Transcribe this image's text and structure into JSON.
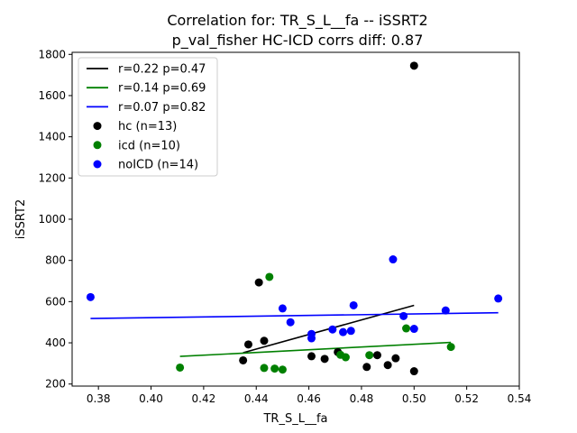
{
  "chart_data": {
    "type": "scatter",
    "title": [
      "Correlation for: TR_S_L__fa -- iSSRT2",
      "p_val_fisher HC-ICD corrs diff: 0.87"
    ],
    "xlabel": "TR_S_L__fa",
    "ylabel": "iSSRT2",
    "xlim": [
      0.37,
      0.54
    ],
    "ylim": [
      190,
      1810
    ],
    "x_ticks": [
      0.38,
      0.4,
      0.42,
      0.44,
      0.46,
      0.48,
      0.5,
      0.52,
      0.54
    ],
    "x_tick_labels": [
      "0.38",
      "0.40",
      "0.42",
      "0.44",
      "0.46",
      "0.48",
      "0.50",
      "0.52",
      "0.54"
    ],
    "y_ticks": [
      200,
      400,
      600,
      800,
      1000,
      1200,
      1400,
      1600,
      1800
    ],
    "y_tick_labels": [
      "200",
      "400",
      "600",
      "800",
      "1000",
      "1200",
      "1400",
      "1600",
      "1800"
    ],
    "grid": false,
    "legend_position": "top-left",
    "legend": [
      {
        "label": "r=0.22 p=0.47",
        "kind": "line",
        "color": "#000000"
      },
      {
        "label": "r=0.14 p=0.69",
        "kind": "line",
        "color": "#008000"
      },
      {
        "label": "r=0.07 p=0.82",
        "kind": "line",
        "color": "#0000ff"
      },
      {
        "label": "hc (n=13)",
        "kind": "marker",
        "color": "#000000"
      },
      {
        "label": "icd (n=10)",
        "kind": "marker",
        "color": "#008000"
      },
      {
        "label": "noICD (n=14)",
        "kind": "marker",
        "color": "#0000ff"
      }
    ],
    "series": [
      {
        "name": "hc (n=13)",
        "color": "#000000",
        "x": [
          0.435,
          0.437,
          0.441,
          0.443,
          0.461,
          0.466,
          0.471,
          0.482,
          0.486,
          0.49,
          0.493,
          0.5,
          0.5
        ],
        "y": [
          315,
          392,
          693,
          410,
          335,
          322,
          355,
          283,
          340,
          292,
          325,
          1745,
          262
        ]
      },
      {
        "name": "icd (n=10)",
        "color": "#008000",
        "x": [
          0.411,
          0.443,
          0.445,
          0.447,
          0.45,
          0.472,
          0.474,
          0.483,
          0.497,
          0.514
        ],
        "y": [
          280,
          278,
          720,
          275,
          270,
          342,
          330,
          340,
          470,
          380
        ]
      },
      {
        "name": "noICD (n=14)",
        "color": "#0000ff",
        "x": [
          0.377,
          0.45,
          0.453,
          0.461,
          0.461,
          0.469,
          0.473,
          0.476,
          0.477,
          0.492,
          0.496,
          0.5,
          0.512,
          0.532
        ],
        "y": [
          622,
          567,
          500,
          443,
          422,
          465,
          452,
          458,
          582,
          805,
          530,
          468,
          557,
          615
        ]
      }
    ],
    "fit_lines": [
      {
        "label": "r=0.22 p=0.47",
        "color": "#000000",
        "x": [
          0.435,
          0.5
        ],
        "y": [
          352,
          582
        ]
      },
      {
        "label": "r=0.14 p=0.69",
        "color": "#008000",
        "x": [
          0.411,
          0.514
        ],
        "y": [
          334,
          402
        ]
      },
      {
        "label": "r=0.07 p=0.82",
        "color": "#0000ff",
        "x": [
          0.377,
          0.532
        ],
        "y": [
          518,
          546
        ]
      }
    ]
  }
}
